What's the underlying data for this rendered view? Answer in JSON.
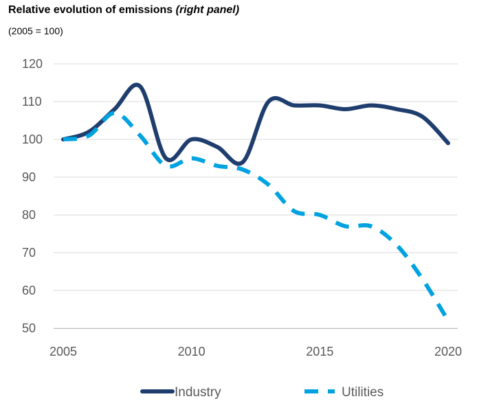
{
  "chart_data": {
    "type": "line",
    "title_main": "Relative evolution of emissions ",
    "title_emph": "(right panel)",
    "subtitle": "(2005 = 100)",
    "xlabel": "",
    "ylabel": "",
    "xlim": [
      2005,
      2020
    ],
    "ylim": [
      50,
      120
    ],
    "yticks": [
      120,
      110,
      100,
      90,
      80,
      70,
      60,
      50
    ],
    "xticks": [
      2005,
      2010,
      2015,
      2020
    ],
    "grid": true,
    "legend_position": "bottom",
    "series": [
      {
        "name": "Industry",
        "style": "solid",
        "color": "#1f3e6e",
        "x": [
          2005,
          2006,
          2007,
          2008,
          2009,
          2010,
          2011,
          2012,
          2013,
          2014,
          2015,
          2016,
          2017,
          2018,
          2019,
          2020
        ],
        "values": [
          100,
          102,
          108,
          114,
          95,
          100,
          98,
          94,
          110,
          109,
          109,
          108,
          109,
          108,
          106,
          99
        ]
      },
      {
        "name": "Utilities",
        "style": "dashed",
        "color": "#00a3e0",
        "x": [
          2005,
          2006,
          2007,
          2008,
          2009,
          2010,
          2011,
          2012,
          2013,
          2014,
          2015,
          2016,
          2017,
          2018,
          2019,
          2020
        ],
        "values": [
          100,
          101,
          107,
          101,
          93,
          95,
          93,
          92,
          88,
          81,
          80,
          77,
          77,
          72,
          63,
          52
        ]
      }
    ]
  }
}
